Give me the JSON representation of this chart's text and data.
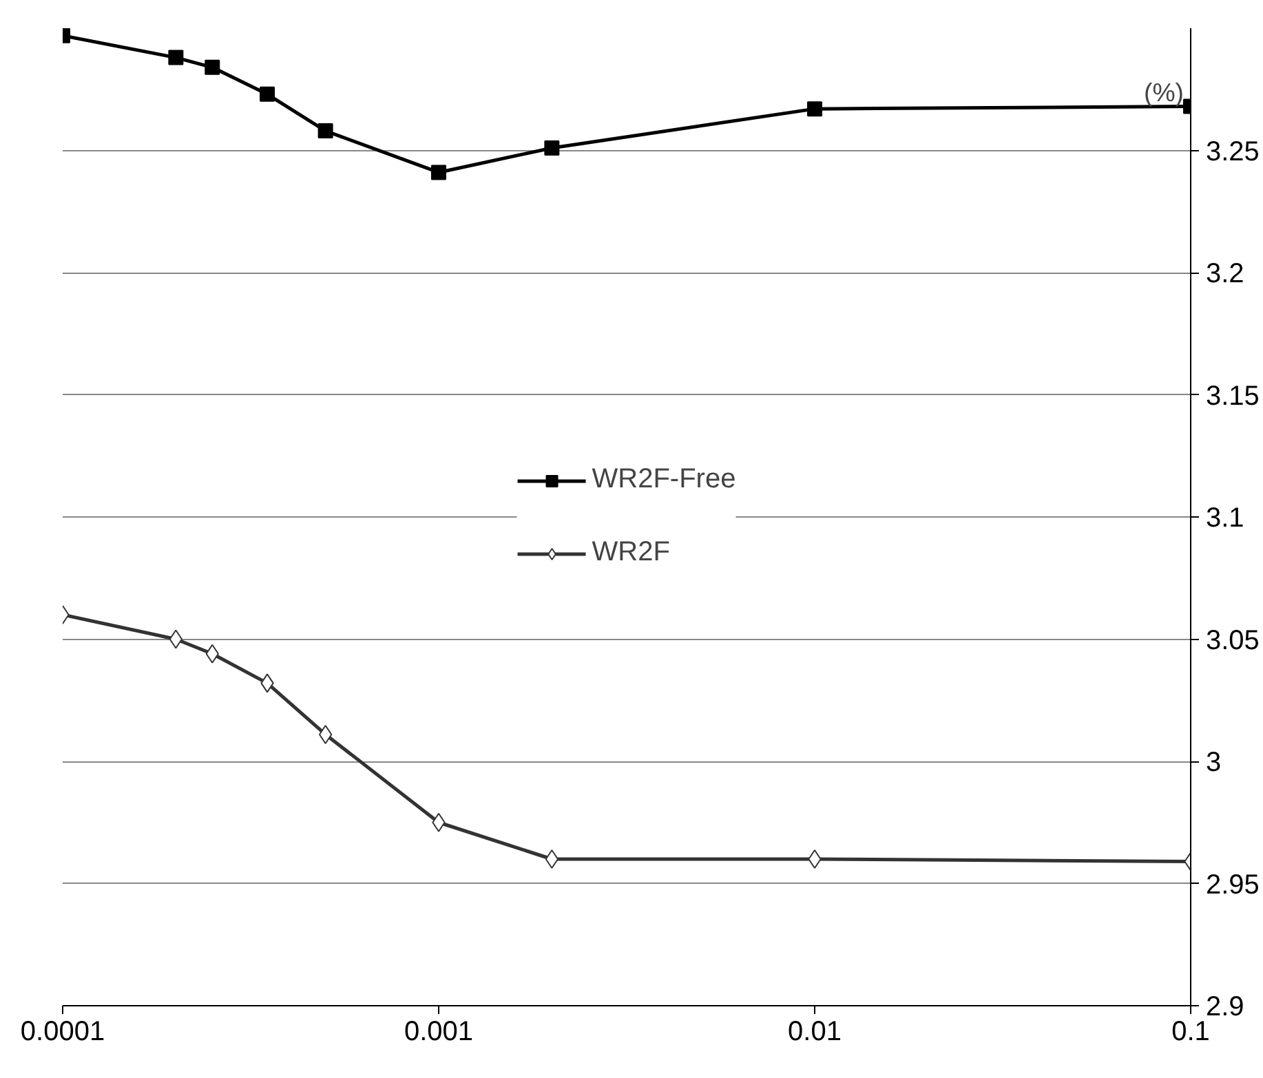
{
  "chart_data": {
    "type": "line",
    "x": [
      0.0001,
      0.0002,
      0.00025,
      0.00035,
      0.0005,
      0.001,
      0.002,
      0.01,
      0.1
    ],
    "series": [
      {
        "name": "WR2F-Free",
        "color": "#000000",
        "marker": "square",
        "values": [
          3.297,
          3.288,
          3.284,
          3.273,
          3.258,
          3.241,
          3.251,
          3.267,
          3.268
        ]
      },
      {
        "name": "WR2F",
        "color": "#333333",
        "marker": "diamond",
        "values": [
          3.06,
          3.05,
          3.044,
          3.032,
          3.011,
          2.975,
          2.96,
          2.96,
          2.959
        ]
      }
    ],
    "log": "x",
    "xlim": [
      0.0001,
      0.1
    ],
    "xticks": [
      0.0001,
      0.001,
      0.01,
      0.1
    ],
    "ylim": [
      2.9,
      3.3
    ],
    "yticks": [
      2.9,
      2.95,
      3,
      3.05,
      3.1,
      3.15,
      3.2,
      3.25
    ],
    "grid": "y",
    "legend": "center",
    "line_style": "solid",
    "annotations": [
      "(%)"
    ]
  }
}
